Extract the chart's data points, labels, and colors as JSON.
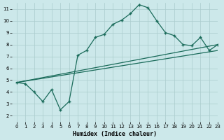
{
  "xlabel": "Humidex (Indice chaleur)",
  "ylabel": "",
  "bg_color": "#cce8ea",
  "grid_color": "#aacccc",
  "line_color": "#1a6b5a",
  "xlim": [
    -0.5,
    23
  ],
  "ylim": [
    1.5,
    11.5
  ],
  "xticks": [
    0,
    1,
    2,
    3,
    4,
    5,
    6,
    7,
    8,
    9,
    10,
    11,
    12,
    13,
    14,
    15,
    16,
    17,
    18,
    19,
    20,
    21,
    22,
    23
  ],
  "yticks": [
    2,
    3,
    4,
    5,
    6,
    7,
    8,
    9,
    10,
    11
  ],
  "line1_x": [
    0,
    1,
    2,
    3,
    4,
    5,
    6,
    7,
    8,
    9,
    10,
    11,
    12,
    13,
    14,
    15,
    16,
    17,
    18,
    19,
    20,
    21,
    22,
    23
  ],
  "line1_y": [
    4.8,
    4.7,
    4.0,
    3.2,
    4.2,
    2.5,
    3.2,
    7.1,
    7.5,
    8.6,
    8.85,
    9.7,
    10.05,
    10.6,
    11.35,
    11.1,
    10.0,
    9.0,
    8.75,
    8.0,
    7.9,
    8.6,
    7.5,
    8.0
  ],
  "line2_x": [
    0,
    23
  ],
  "line2_y": [
    4.8,
    8.0
  ],
  "line3_x": [
    0,
    23
  ],
  "line3_y": [
    4.8,
    7.5
  ]
}
